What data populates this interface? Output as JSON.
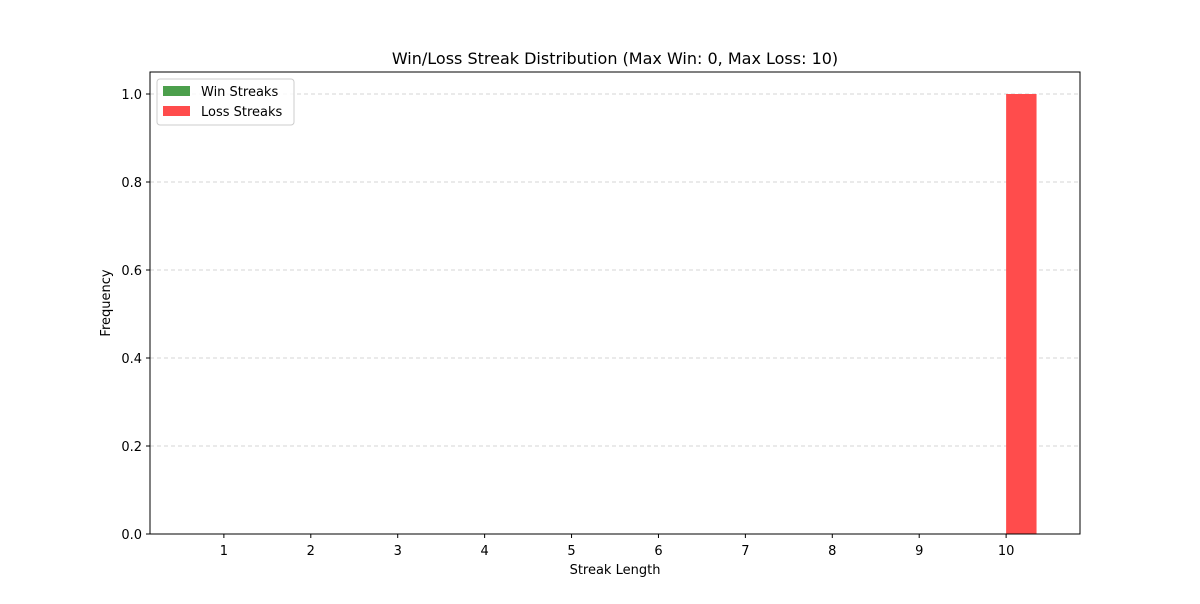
{
  "chart_data": {
    "type": "bar",
    "title": "Win/Loss Streak Distribution (Max Win: 0, Max Loss: 10)",
    "xlabel": "Streak Length",
    "ylabel": "Frequency",
    "categories": [
      1,
      2,
      3,
      4,
      5,
      6,
      7,
      8,
      9,
      10
    ],
    "series": [
      {
        "name": "Win Streaks",
        "color": "#4c9f4c",
        "values": [
          0,
          0,
          0,
          0,
          0,
          0,
          0,
          0,
          0,
          0
        ]
      },
      {
        "name": "Loss Streaks",
        "color": "#ff4c4c",
        "values": [
          0,
          0,
          0,
          0,
          0,
          0,
          0,
          0,
          0,
          1
        ]
      }
    ],
    "xlim": [
      0.15,
      10.85
    ],
    "ylim": [
      0,
      1.05
    ],
    "yticks": [
      0.0,
      0.2,
      0.4,
      0.6,
      0.8,
      1.0
    ],
    "ytick_labels": [
      "0.0",
      "0.2",
      "0.4",
      "0.6",
      "0.8",
      "1.0"
    ],
    "grid": "y-dashed",
    "legend_position": "top-left"
  }
}
